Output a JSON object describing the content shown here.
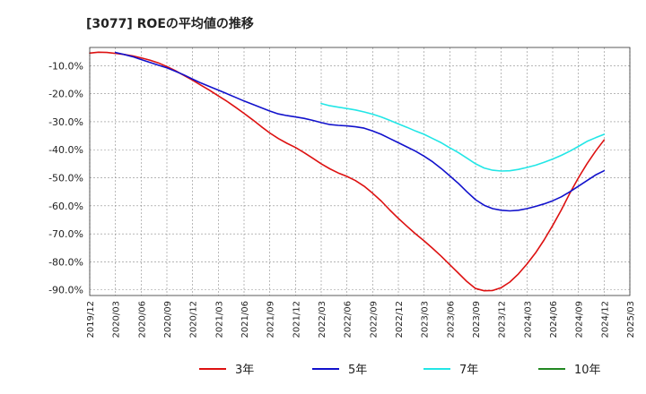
{
  "chart_data": {
    "type": "line",
    "title": "[3077]  ROEの平均値の推移",
    "xlabel": "",
    "ylabel": "",
    "ylim": [
      -92,
      -3.5
    ],
    "x_ticks": [
      "2019/12",
      "2020/03",
      "2020/06",
      "2020/09",
      "2020/12",
      "2021/03",
      "2021/06",
      "2021/09",
      "2021/12",
      "2022/03",
      "2022/06",
      "2022/09",
      "2022/12",
      "2023/03",
      "2023/06",
      "2023/09",
      "2023/12",
      "2024/03",
      "2024/06",
      "2024/09",
      "2024/12",
      "2025/03"
    ],
    "y_ticks": [
      -10,
      -20,
      -30,
      -40,
      -50,
      -60,
      -70,
      -80,
      -90
    ],
    "y_tick_labels": [
      "-10.0%",
      "-20.0%",
      "-30.0%",
      "-40.0%",
      "-50.0%",
      "-60.0%",
      "-70.0%",
      "-80.0%",
      "-90.0%"
    ],
    "grid": true,
    "legend_position": "bottom",
    "series": [
      {
        "name": "3年",
        "color": "#dd1111",
        "x": [
          "2019/12",
          "2020/01",
          "2020/02",
          "2020/03",
          "2020/04",
          "2020/05",
          "2020/06",
          "2020/07",
          "2020/08",
          "2020/09",
          "2020/10",
          "2020/11",
          "2020/12",
          "2021/01",
          "2021/02",
          "2021/03",
          "2021/04",
          "2021/05",
          "2021/06",
          "2021/07",
          "2021/08",
          "2021/09",
          "2021/10",
          "2021/11",
          "2021/12",
          "2022/01",
          "2022/02",
          "2022/03",
          "2022/04",
          "2022/05",
          "2022/06",
          "2022/07",
          "2022/08",
          "2022/09",
          "2022/10",
          "2022/11",
          "2022/12",
          "2023/01",
          "2023/02",
          "2023/03",
          "2023/04",
          "2023/05",
          "2023/06",
          "2023/07",
          "2023/08",
          "2023/09",
          "2023/10",
          "2023/11",
          "2023/12",
          "2024/01",
          "2024/02",
          "2024/03",
          "2024/04",
          "2024/05",
          "2024/06",
          "2024/07",
          "2024/08",
          "2024/09",
          "2024/10",
          "2024/11",
          "2024/12"
        ],
        "y": [
          -5.5,
          -5.2,
          -5.3,
          -5.6,
          -6.0,
          -6.5,
          -7.2,
          -8.0,
          -9.0,
          -10.3,
          -11.8,
          -13.5,
          -15.2,
          -17.0,
          -18.8,
          -20.8,
          -22.7,
          -24.8,
          -27.0,
          -29.3,
          -31.7,
          -34.0,
          -36.0,
          -37.7,
          -39.2,
          -41.0,
          -43.0,
          -45.0,
          -46.8,
          -48.3,
          -49.5,
          -51.0,
          -53.0,
          -55.5,
          -58.3,
          -61.5,
          -64.5,
          -67.3,
          -70.0,
          -72.5,
          -75.2,
          -78.0,
          -81.0,
          -84.0,
          -87.0,
          -89.5,
          -90.3,
          -90.2,
          -89.2,
          -87.2,
          -84.3,
          -80.8,
          -76.8,
          -72.2,
          -67.0,
          -61.5,
          -55.5,
          -50.0,
          -45.0,
          -40.5,
          -36.5
        ]
      },
      {
        "name": "5年",
        "color": "#1111cc",
        "x": [
          "2020/03",
          "2020/04",
          "2020/05",
          "2020/06",
          "2020/07",
          "2020/08",
          "2020/09",
          "2020/10",
          "2020/11",
          "2020/12",
          "2021/01",
          "2021/02",
          "2021/03",
          "2021/04",
          "2021/05",
          "2021/06",
          "2021/07",
          "2021/08",
          "2021/09",
          "2021/10",
          "2021/11",
          "2021/12",
          "2022/01",
          "2022/02",
          "2022/03",
          "2022/04",
          "2022/05",
          "2022/06",
          "2022/07",
          "2022/08",
          "2022/09",
          "2022/10",
          "2022/11",
          "2022/12",
          "2023/01",
          "2023/02",
          "2023/03",
          "2023/04",
          "2023/05",
          "2023/06",
          "2023/07",
          "2023/08",
          "2023/09",
          "2023/10",
          "2023/11",
          "2023/12",
          "2024/01",
          "2024/02",
          "2024/03",
          "2024/04",
          "2024/05",
          "2024/06",
          "2024/07",
          "2024/08",
          "2024/09",
          "2024/10",
          "2024/11",
          "2024/12"
        ],
        "y": [
          -5.3,
          -6.0,
          -6.8,
          -7.8,
          -8.8,
          -9.8,
          -10.8,
          -12.0,
          -13.3,
          -14.8,
          -16.2,
          -17.5,
          -18.7,
          -20.0,
          -21.3,
          -22.6,
          -23.8,
          -25.0,
          -26.2,
          -27.2,
          -27.8,
          -28.3,
          -28.8,
          -29.5,
          -30.3,
          -31.0,
          -31.3,
          -31.5,
          -31.8,
          -32.3,
          -33.3,
          -34.5,
          -36.0,
          -37.5,
          -39.0,
          -40.5,
          -42.3,
          -44.3,
          -46.7,
          -49.3,
          -52.0,
          -55.0,
          -57.8,
          -59.8,
          -61.0,
          -61.6,
          -61.8,
          -61.6,
          -61.0,
          -60.2,
          -59.3,
          -58.2,
          -56.8,
          -55.0,
          -53.0,
          -51.0,
          -49.0,
          -47.5
        ]
      },
      {
        "name": "7年",
        "color": "#22e6e6",
        "x": [
          "2022/03",
          "2022/04",
          "2022/05",
          "2022/06",
          "2022/07",
          "2022/08",
          "2022/09",
          "2022/10",
          "2022/11",
          "2022/12",
          "2023/01",
          "2023/02",
          "2023/03",
          "2023/04",
          "2023/05",
          "2023/06",
          "2023/07",
          "2023/08",
          "2023/09",
          "2023/10",
          "2023/11",
          "2023/12",
          "2024/01",
          "2024/02",
          "2024/03",
          "2024/04",
          "2024/05",
          "2024/06",
          "2024/07",
          "2024/08",
          "2024/09",
          "2024/10",
          "2024/11",
          "2024/12"
        ],
        "y": [
          -23.5,
          -24.3,
          -24.8,
          -25.3,
          -25.8,
          -26.5,
          -27.3,
          -28.3,
          -29.5,
          -30.8,
          -32.0,
          -33.3,
          -34.5,
          -36.0,
          -37.5,
          -39.3,
          -41.0,
          -43.0,
          -45.0,
          -46.5,
          -47.3,
          -47.6,
          -47.5,
          -47.0,
          -46.3,
          -45.5,
          -44.5,
          -43.3,
          -42.0,
          -40.5,
          -38.8,
          -37.0,
          -35.7,
          -34.5
        ]
      },
      {
        "name": "10年",
        "color": "#228822",
        "x": [],
        "y": []
      }
    ]
  }
}
